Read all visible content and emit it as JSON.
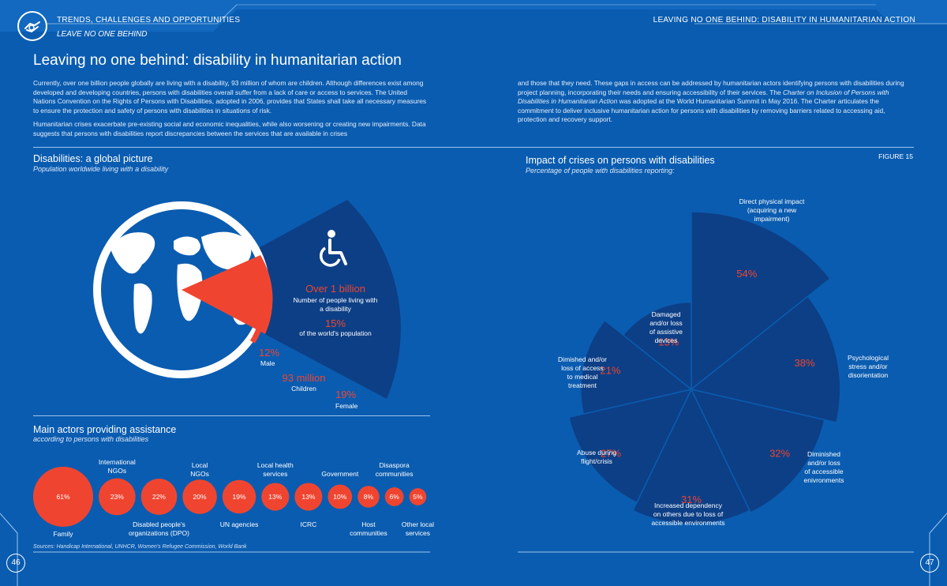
{
  "header": {
    "left_section": "TRENDS, CHALLENGES AND OPPORTUNITIES",
    "left_subsection": "LEAVE NO ONE BEHIND",
    "right_section": "LEAVING NO ONE BEHIND: DISABILITY IN HUMANITARIAN ACTION",
    "logo_icon": "handshake-icon"
  },
  "article": {
    "title": "Leaving no one behind: disability in humanitarian action",
    "col1_p1": "Currently, over one billion people globally are living with a disability, 93 million of whom are children. Although differences exist among developed and developing countries, persons with disabilities overall suffer from a lack of care or access to services. The United Nations Convention on the Rights of Persons with Disabilities, adopted in 2006, provides that States shall take all necessary measures to ensure the protection and safety of persons with disabilities in situations of risk.",
    "col1_p2": "Humanitarian crises exacerbate pre-existing social and economic inequalities, while also worsening or creating new impairments. Data suggests that persons with disabilities report discrepancies between the services that are available in crises",
    "col2_p1a": "and those that they need. These gaps in access can be addressed by humanitarian actors identifying persons with disabilities during project planning, incorporating their needs and ensuring accessibility of their services. The ",
    "col2_p1_italic": "Charter on Inclusion of Persons with Disabilities in Humanitarian Action",
    "col2_p1b": " was adopted at the World Humanitarian Summit in May 2016. The Charter articulates the commitment to deliver inclusive humanitarian action for persons with disabilities by removing barriers related to accessing aid, protection and recovery support."
  },
  "global_picture": {
    "title": "Disabilities: a global picture",
    "subtitle": "Population worldwide living with a disability",
    "icon": "wheelchair-icon",
    "headline_value": "Over 1 billion",
    "headline_label": "Number of people living with a disability",
    "share_value": "15%",
    "share_label": "of the world's population",
    "male_value": "12%",
    "male_label": "Male",
    "children_value": "93 million",
    "children_label": "Children",
    "female_value": "19%",
    "female_label": "Female",
    "colors": {
      "globe": "#0a5cb0",
      "wedge": "#0d3f86",
      "accent": "#ef4530"
    }
  },
  "main_actors": {
    "title": "Main actors providing assistance",
    "subtitle": "according to persons with disabilities",
    "source": "Sources: Handicap International, UNHCR, Women's Refugee Commission, World Bank",
    "chart_data": {
      "type": "bubble",
      "categories": [
        "Family",
        "International NGOs",
        "Disabled people's organizations (DPO)",
        "Local NGOs",
        "UN agencies",
        "Local health services",
        "ICRC",
        "Government",
        "Host communities",
        "Disaspora communities",
        "Other local services"
      ],
      "values": [
        61,
        23,
        22,
        20,
        19,
        13,
        13,
        10,
        8,
        6,
        5
      ],
      "value_labels": [
        "61%",
        "23%",
        "22%",
        "20%",
        "19%",
        "13%",
        "13%",
        "10%",
        "8%",
        "6%",
        "5%"
      ],
      "label_position": [
        "below",
        "above",
        "below",
        "above",
        "below",
        "above",
        "below",
        "above",
        "below",
        "above",
        "below"
      ],
      "label_lines": [
        [
          "Family"
        ],
        [
          "International",
          "NGOs"
        ],
        [
          "Disabled people's",
          "organizations (DPO)"
        ],
        [
          "Local",
          "NGOs"
        ],
        [
          "UN agencies"
        ],
        [
          "Local health",
          "services"
        ],
        [
          "ICRC"
        ],
        [
          "Government"
        ],
        [
          "Host",
          "communities"
        ],
        [
          "Disaspora",
          "communities"
        ],
        [
          "Other local",
          "services"
        ]
      ],
      "color": "#ef4530"
    }
  },
  "impact": {
    "title": "Impact of crises on persons with disabilities",
    "subtitle": "Percentage of people with disabilities reporting:",
    "figure_label": "FIGURE 15",
    "chart_data": {
      "type": "polar-area",
      "categories": [
        "Direct physical impact (acquiring a new impairment)",
        "Psychological stress and/or disorientation",
        "Diminished and/or loss of accessible enivronments",
        "Increased dependency on others due to loss of accessible environments",
        "Abuse during flight/crisis",
        "Dimished and/or loss of access to medical treatment",
        "Damaged and/or loss of assistive devices"
      ],
      "values": [
        54,
        38,
        32,
        31,
        27,
        21,
        13
      ],
      "value_labels": [
        "54%",
        "38%",
        "32%",
        "31%",
        "27%",
        "21%",
        "13%"
      ],
      "label_lines": [
        [
          "Direct physical impact",
          "(acquiring a new",
          "impairment)"
        ],
        [
          "Psychological",
          "stress and/or",
          "disorientation"
        ],
        [
          "Diminished",
          "and/or loss",
          "of accessible",
          "enivronments"
        ],
        [
          "Increased dependency",
          "on others due to loss of",
          "accessible environments"
        ],
        [
          "Abuse during",
          "flight/crisis"
        ],
        [
          "Dimished and/or",
          "loss of access",
          "to medical",
          "treatment"
        ],
        [
          "Damaged",
          "and/or loss",
          "of assistive",
          "devices"
        ]
      ],
      "color": "#0d3f86",
      "accent": "#ef4530"
    }
  },
  "pages": {
    "left": "46",
    "right": "47"
  }
}
